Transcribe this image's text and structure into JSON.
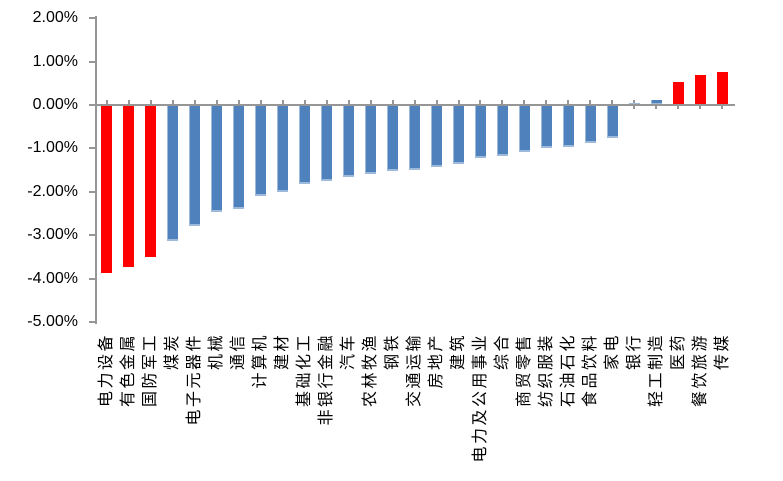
{
  "chart_data": {
    "type": "bar",
    "title": "",
    "xlabel": "",
    "ylabel": "",
    "categories": [
      "电力设备",
      "有色金属",
      "国防军工",
      "煤炭",
      "电子元器件",
      "机械",
      "通信",
      "计算机",
      "建材",
      "基础化工",
      "非银行金融",
      "汽车",
      "农林牧渔",
      "钢铁",
      "交通运输",
      "房地产",
      "建筑",
      "电力及公用事业",
      "综合",
      "商贸零售",
      "纺织服装",
      "石油石化",
      "食品饮料",
      "家电",
      "银行",
      "轻工制造",
      "医药",
      "餐饮旅游",
      "传媒"
    ],
    "values": [
      -3.86,
      -3.74,
      -3.49,
      -3.13,
      -2.78,
      -2.47,
      -2.39,
      -2.1,
      -2.0,
      -1.81,
      -1.75,
      -1.66,
      -1.58,
      -1.53,
      -1.5,
      -1.43,
      -1.35,
      -1.23,
      -1.17,
      -1.08,
      -1.0,
      -0.97,
      -0.88,
      -0.77,
      0.05,
      0.12,
      0.54,
      0.69,
      0.76
    ],
    "bar_colors": [
      "red",
      "red",
      "red",
      "blue",
      "blue",
      "blue",
      "blue",
      "blue",
      "blue",
      "blue",
      "blue",
      "blue",
      "blue",
      "blue",
      "blue",
      "blue",
      "blue",
      "blue",
      "blue",
      "blue",
      "blue",
      "blue",
      "blue",
      "blue",
      "blue",
      "blue",
      "red",
      "red",
      "red"
    ],
    "colors": {
      "red": "#FF0000",
      "blue": "#4F81BD",
      "axis": "#969696",
      "text": "#000000",
      "background": "#FFFFFF"
    },
    "y_axis": {
      "ticks": [
        "2.00%",
        "1.00%",
        "0.00%",
        "-1.00%",
        "-2.00%",
        "-3.00%",
        "-4.00%",
        "-5.00%"
      ],
      "tick_values": [
        2,
        1,
        0,
        -1,
        -2,
        -3,
        -4,
        -5
      ],
      "ylim": [
        -5,
        2
      ],
      "format": "percent"
    },
    "grid": false,
    "legend": null
  }
}
